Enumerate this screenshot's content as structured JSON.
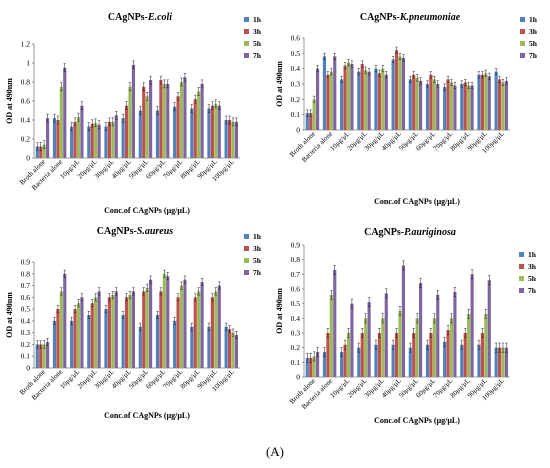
{
  "figure_caption": "(A)",
  "colors": {
    "1h": "#4f81bd",
    "3h": "#c0504d",
    "5h": "#9bbb59",
    "7h": "#8064a2"
  },
  "chart_data": [
    {
      "type": "bar",
      "title_prefix": "CAgNPs-",
      "title_organism": "E.coli",
      "ylabel": "OD  at 490nm",
      "xlabel": "Conc.of CAgNPs (μg/μL)",
      "ylim": [
        0,
        1.2
      ],
      "yticks": [
        0,
        0.2,
        0.4,
        0.6,
        0.8,
        1,
        1.2
      ],
      "ytick_labels": [
        "0",
        "0.2",
        "0.4",
        "0.6",
        "0.8",
        "1",
        "1.2"
      ],
      "categories": [
        "Broth alone",
        "Bacteria alone",
        "10μg/μL",
        "20μg/μL",
        "30μg/μL",
        "40μg/μL",
        "50μg/μL",
        "60μg/μL",
        "70μg/μL",
        "80μg/μL",
        "90μg/μL",
        "100μg/μL"
      ],
      "legend_position": "right",
      "series": [
        {
          "name": "1h",
          "values": [
            0.12,
            0.42,
            0.33,
            0.33,
            0.33,
            0.42,
            0.5,
            0.5,
            0.54,
            0.52,
            0.52,
            0.4
          ]
        },
        {
          "name": "3h",
          "values": [
            0.12,
            0.4,
            0.38,
            0.36,
            0.38,
            0.55,
            0.75,
            0.82,
            0.65,
            0.62,
            0.55,
            0.4
          ]
        },
        {
          "name": "5h",
          "values": [
            0.14,
            0.75,
            0.43,
            0.37,
            0.38,
            0.75,
            0.65,
            0.78,
            0.8,
            0.7,
            0.57,
            0.38
          ]
        },
        {
          "name": "7h",
          "values": [
            0.42,
            0.95,
            0.55,
            0.35,
            0.45,
            0.98,
            0.82,
            0.78,
            0.85,
            0.78,
            0.55,
            0.38
          ]
        }
      ]
    },
    {
      "type": "bar",
      "title_prefix": "CAgNPs-",
      "title_organism": "K.pneumoniae",
      "ylabel": "OD  at 490nm",
      "xlabel": "Conc.of CAgNPs (μg/μL)",
      "ylim": [
        0,
        0.6
      ],
      "yticks": [
        0,
        0.1,
        0.2,
        0.3,
        0.4,
        0.5,
        0.6
      ],
      "ytick_labels": [
        "0",
        "0.1",
        "0.2",
        "0.3",
        "0.4",
        "0.5",
        "0.6"
      ],
      "categories": [
        "Broth alone",
        "Bacteria alone",
        "10μg/μL",
        "20μg/μL",
        "30μg/μL",
        "40μg/μL",
        "50μg/μL",
        "60μg/μL",
        "70μg/μL",
        "80μg/μL",
        "90μg/μL",
        "100μg/μL"
      ],
      "legend_position": "right",
      "series": [
        {
          "name": "1h",
          "values": [
            0.11,
            0.48,
            0.33,
            0.38,
            0.4,
            0.46,
            0.33,
            0.3,
            0.28,
            0.3,
            0.36,
            0.38
          ]
        },
        {
          "name": "3h",
          "values": [
            0.11,
            0.36,
            0.42,
            0.43,
            0.37,
            0.52,
            0.36,
            0.36,
            0.33,
            0.31,
            0.36,
            0.33
          ]
        },
        {
          "name": "5h",
          "values": [
            0.2,
            0.38,
            0.44,
            0.39,
            0.4,
            0.48,
            0.34,
            0.33,
            0.31,
            0.29,
            0.37,
            0.31
          ]
        },
        {
          "name": "7h",
          "values": [
            0.4,
            0.48,
            0.43,
            0.38,
            0.36,
            0.47,
            0.32,
            0.3,
            0.29,
            0.29,
            0.35,
            0.32
          ]
        }
      ]
    },
    {
      "type": "bar",
      "title_prefix": "CAgNPs-",
      "title_organism": "S.aureus",
      "ylabel": "OD  at 490nm",
      "xlabel": "Conc.of CAgNPs (μg/μL)",
      "ylim": [
        0,
        0.9
      ],
      "yticks": [
        0,
        0.1,
        0.2,
        0.3,
        0.4,
        0.5,
        0.6,
        0.7,
        0.8,
        0.9
      ],
      "ytick_labels": [
        "0",
        "0.1",
        "0.2",
        "0.3",
        "0.4",
        "0.5",
        "0.6",
        "0.7",
        "0.8",
        "0.9"
      ],
      "categories": [
        "Broth alone",
        "Bacteria alone",
        "10μg/μL",
        "20μg/μL",
        "30μg/μL",
        "40μg/μL",
        "50μg/μL",
        "60μg/μL",
        "70μg/μL",
        "80μg/μL",
        "90μg/μL",
        "100μg/μL"
      ],
      "legend_position": "right",
      "series": [
        {
          "name": "1h",
          "values": [
            0.2,
            0.4,
            0.4,
            0.45,
            0.5,
            0.45,
            0.35,
            0.45,
            0.4,
            0.35,
            0.35,
            0.35
          ]
        },
        {
          "name": "3h",
          "values": [
            0.2,
            0.5,
            0.5,
            0.55,
            0.6,
            0.6,
            0.65,
            0.65,
            0.6,
            0.6,
            0.6,
            0.33
          ]
        },
        {
          "name": "5h",
          "values": [
            0.2,
            0.65,
            0.55,
            0.6,
            0.62,
            0.62,
            0.68,
            0.8,
            0.7,
            0.65,
            0.65,
            0.3
          ]
        },
        {
          "name": "7h",
          "values": [
            0.22,
            0.8,
            0.6,
            0.65,
            0.65,
            0.65,
            0.75,
            0.78,
            0.75,
            0.73,
            0.7,
            0.28
          ]
        }
      ]
    },
    {
      "type": "bar",
      "title_prefix": "CAgNPs-",
      "title_organism": "P.auriginosa",
      "ylabel": "OD  at 490nm",
      "xlabel": "Conc.of CAgNPs (μg/μL)",
      "ylim": [
        0,
        0.9
      ],
      "yticks": [
        0,
        0.1,
        0.2,
        0.3,
        0.4,
        0.5,
        0.6,
        0.7,
        0.8,
        0.9
      ],
      "ytick_labels": [
        "0",
        "0.1",
        "0.2",
        "0.3",
        "0.4",
        "0.5",
        "0.6",
        "0.7",
        "0.8",
        "0.9"
      ],
      "categories": [
        "Broth alone",
        "Bacteria alone",
        "10μg/μL",
        "20μg/μL",
        "30μg/μL",
        "40μg/μL",
        "50μg/μL",
        "60μg/μL",
        "70μg/μL",
        "80μg/μL",
        "90μg/μL",
        "100μg/μL"
      ],
      "legend_position": "right",
      "series": [
        {
          "name": "1h",
          "values": [
            0.13,
            0.17,
            0.17,
            0.2,
            0.22,
            0.22,
            0.2,
            0.22,
            0.24,
            0.22,
            0.22,
            0.2
          ]
        },
        {
          "name": "3h",
          "values": [
            0.13,
            0.3,
            0.22,
            0.3,
            0.3,
            0.3,
            0.3,
            0.3,
            0.32,
            0.3,
            0.3,
            0.2
          ]
        },
        {
          "name": "5h",
          "values": [
            0.14,
            0.56,
            0.3,
            0.4,
            0.4,
            0.45,
            0.4,
            0.4,
            0.4,
            0.43,
            0.43,
            0.2
          ]
        },
        {
          "name": "7h",
          "values": [
            0.17,
            0.73,
            0.5,
            0.51,
            0.57,
            0.76,
            0.64,
            0.56,
            0.58,
            0.7,
            0.66,
            0.2
          ]
        }
      ]
    }
  ]
}
